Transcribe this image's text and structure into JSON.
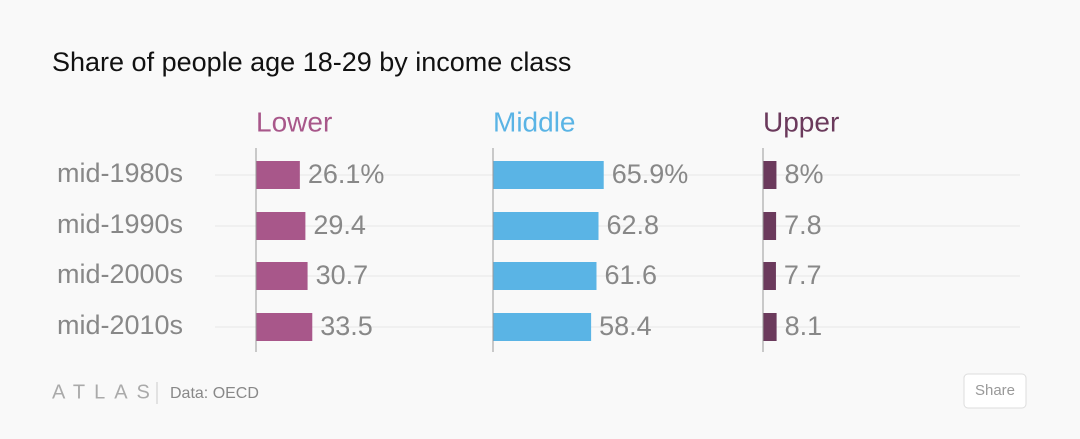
{
  "chart_data": {
    "type": "bar",
    "title": "Share of people age 18-29 by income class",
    "categories": [
      "mid-1980s",
      "mid-1990s",
      "mid-2000s",
      "mid-2010s"
    ],
    "series": [
      {
        "name": "Lower",
        "color": "#a8578a",
        "values": [
          26.1,
          29.4,
          30.7,
          33.5
        ],
        "value_labels": [
          "26.1%",
          "29.4",
          "30.7",
          "33.5"
        ]
      },
      {
        "name": "Middle",
        "color": "#5ab4e5",
        "values": [
          65.9,
          62.8,
          61.6,
          58.4
        ],
        "value_labels": [
          "65.9%",
          "62.8",
          "61.6",
          "58.4"
        ]
      },
      {
        "name": "Upper",
        "color": "#6b3a5c",
        "values": [
          8,
          7.8,
          7.7,
          8.1
        ],
        "value_labels": [
          "8%",
          "7.8",
          "7.7",
          "8.1"
        ]
      }
    ]
  },
  "footer": {
    "logo": "ATLAS",
    "source": "Data: OECD",
    "button": "Share"
  }
}
